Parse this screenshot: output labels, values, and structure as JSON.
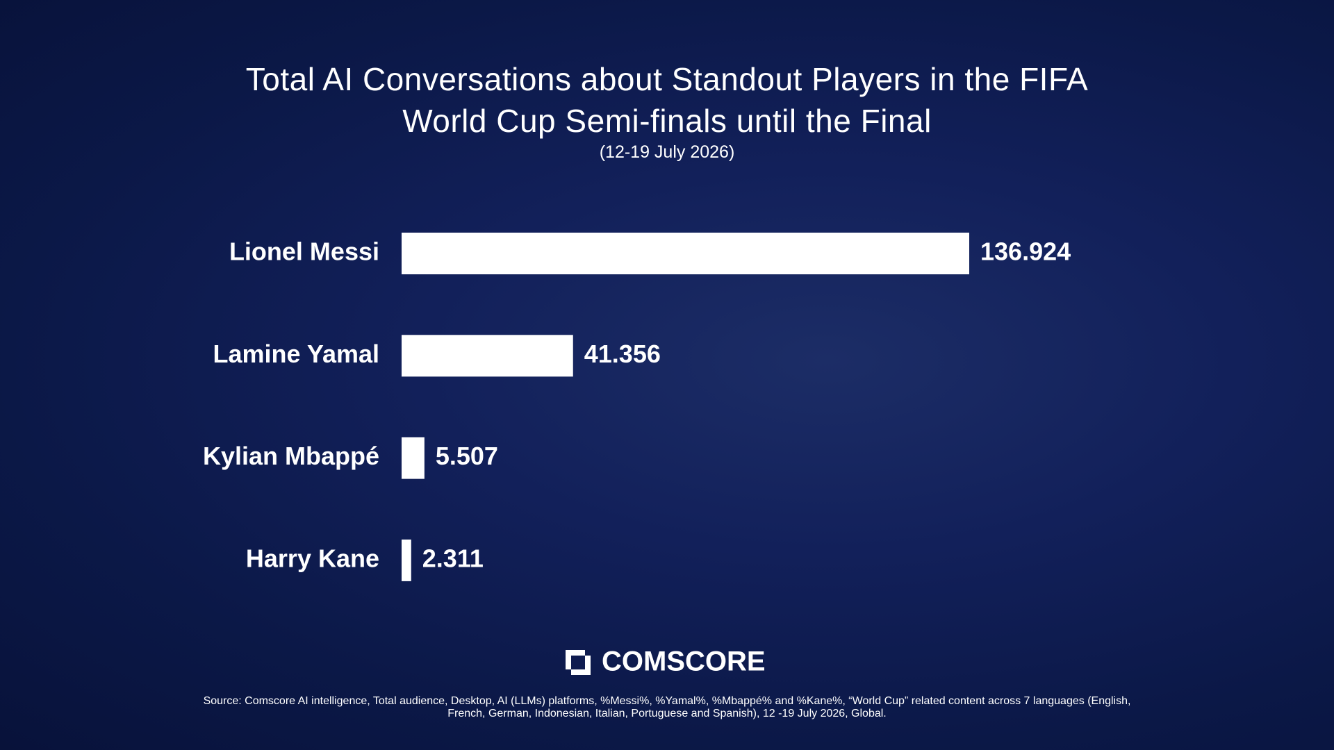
{
  "chart_data": {
    "type": "bar",
    "orientation": "horizontal",
    "title": "Total AI Conversations about Standout Players in the FIFA World Cup Semi-finals until the Final",
    "subtitle": "(12-19 July 2026)",
    "categories": [
      "Lionel Messi",
      "Lamine Yamal",
      "Kylian Mbappé",
      "Harry Kane"
    ],
    "values": [
      136.924,
      41.356,
      5.507,
      2.311
    ],
    "color": "#ffffff"
  },
  "footer": {
    "logo": "COMSCORE",
    "source": "Source: Comscore AI intelligence, Total audience, Desktop, AI (LLMs) platforms, %Messi%, %Yamal%, %Mbappé% and %Kane%, “World Cup” related content across 7 languages (English, French, German, Indonesian, Italian, Portuguese and Spanish), 12 -19 July 2026, Global."
  }
}
